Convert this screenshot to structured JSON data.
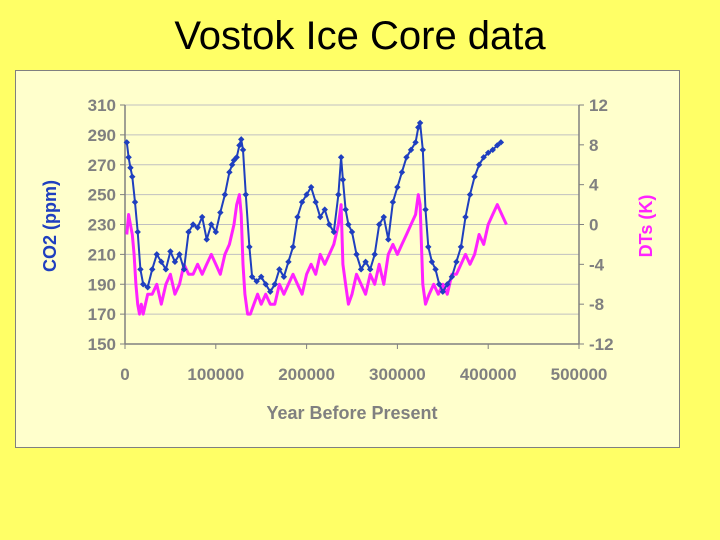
{
  "slide": {
    "title": "Vostok Ice Core data"
  },
  "chart_data": {
    "type": "line",
    "title": "",
    "xlabel": "Year Before Present",
    "ylabel_left": "CO2 (ppm)",
    "ylabel_right": "DTs (K)",
    "xlim": [
      0,
      500000
    ],
    "ylim_left": [
      150,
      310
    ],
    "ylim_right": [
      -12,
      12
    ],
    "x_ticks": [
      "0",
      "100000",
      "200000",
      "300000",
      "400000",
      "500000"
    ],
    "y_left_ticks": [
      "310",
      "290",
      "270",
      "250",
      "230",
      "210",
      "190",
      "170",
      "150"
    ],
    "y_right_ticks": [
      "12",
      "8",
      "4",
      "0",
      "-4",
      "-8",
      "-12"
    ],
    "grid": true,
    "colors": {
      "co2": "#1f3fbf",
      "temp": "#ff22ff",
      "axis": "#808080",
      "grid": "#c0c0c0"
    },
    "series": [
      {
        "axis": "left",
        "marker": "diamond",
        "x": [
          2000,
          4000,
          6000,
          8000,
          11000,
          14000,
          17000,
          20000,
          25000,
          30000,
          35000,
          40000,
          45000,
          50000,
          55000,
          60000,
          65000,
          70000,
          75000,
          80000,
          85000,
          90000,
          95000,
          100000,
          105000,
          110000,
          115000,
          118000,
          120000,
          123000,
          126000,
          128000,
          130000,
          133000,
          137000,
          140000,
          145000,
          150000,
          155000,
          160000,
          165000,
          170000,
          175000,
          180000,
          185000,
          190000,
          195000,
          200000,
          205000,
          210000,
          215000,
          220000,
          225000,
          230000,
          235000,
          238000,
          240000,
          243000,
          246000,
          250000,
          255000,
          260000,
          265000,
          270000,
          275000,
          280000,
          285000,
          290000,
          295000,
          300000,
          305000,
          310000,
          315000,
          320000,
          323000,
          325000,
          328000,
          331000,
          334000,
          338000,
          342000,
          346000,
          350000,
          355000,
          360000,
          365000,
          370000,
          375000,
          380000,
          385000,
          390000,
          395000,
          400000,
          405000,
          410000,
          414000
        ],
        "y": [
          285,
          275,
          268,
          262,
          245,
          225,
          200,
          190,
          188,
          200,
          210,
          205,
          200,
          212,
          205,
          210,
          200,
          225,
          230,
          228,
          235,
          220,
          230,
          225,
          238,
          250,
          265,
          270,
          273,
          275,
          283,
          287,
          280,
          250,
          215,
          195,
          192,
          195,
          190,
          185,
          190,
          200,
          195,
          205,
          215,
          235,
          245,
          250,
          255,
          245,
          235,
          240,
          230,
          225,
          250,
          275,
          260,
          240,
          230,
          225,
          210,
          200,
          205,
          200,
          210,
          230,
          235,
          220,
          245,
          255,
          265,
          275,
          280,
          285,
          295,
          298,
          280,
          240,
          215,
          205,
          200,
          190,
          185,
          190,
          195,
          205,
          215,
          235,
          250,
          262,
          270,
          275,
          278,
          280,
          283,
          285
        ]
      },
      {
        "axis": "right",
        "marker": "none",
        "x": [
          2000,
          4000,
          6000,
          8000,
          10000,
          12000,
          14000,
          16000,
          18000,
          20000,
          25000,
          30000,
          35000,
          40000,
          45000,
          50000,
          55000,
          60000,
          65000,
          70000,
          75000,
          80000,
          85000,
          90000,
          95000,
          100000,
          105000,
          110000,
          115000,
          120000,
          123000,
          126000,
          128000,
          130000,
          132000,
          135000,
          138000,
          142000,
          146000,
          150000,
          155000,
          160000,
          165000,
          170000,
          175000,
          180000,
          185000,
          190000,
          195000,
          200000,
          205000,
          210000,
          215000,
          220000,
          225000,
          230000,
          235000,
          238000,
          240000,
          243000,
          246000,
          250000,
          255000,
          260000,
          265000,
          270000,
          275000,
          280000,
          285000,
          290000,
          295000,
          300000,
          305000,
          310000,
          315000,
          320000,
          323000,
          325000,
          328000,
          331000,
          335000,
          340000,
          345000,
          350000,
          355000,
          360000,
          365000,
          370000,
          375000,
          380000,
          385000,
          390000,
          395000,
          400000,
          405000,
          410000,
          415000,
          420000
        ],
        "y": [
          -1,
          1,
          0,
          -1,
          -3,
          -6,
          -8,
          -9,
          -8,
          -9,
          -7,
          -7,
          -6,
          -8,
          -6,
          -5,
          -7,
          -6,
          -4,
          -5,
          -5,
          -4,
          -5,
          -4,
          -3,
          -4,
          -5,
          -3,
          -2,
          0,
          2,
          3,
          1,
          -4,
          -7,
          -9,
          -9,
          -8,
          -7,
          -8,
          -7,
          -8,
          -8,
          -6,
          -7,
          -6,
          -5,
          -6,
          -7,
          -5,
          -4,
          -5,
          -3,
          -4,
          -3,
          -2,
          0,
          2,
          -4,
          -6,
          -8,
          -7,
          -5,
          -6,
          -7,
          -5,
          -6,
          -4,
          -6,
          -3,
          -2,
          -3,
          -2,
          -1,
          0,
          1,
          3,
          2,
          -6,
          -8,
          -7,
          -6,
          -7,
          -6,
          -7,
          -5,
          -5,
          -4,
          -3,
          -4,
          -3,
          -1,
          -2,
          0,
          1,
          2,
          1,
          0
        ]
      }
    ]
  }
}
